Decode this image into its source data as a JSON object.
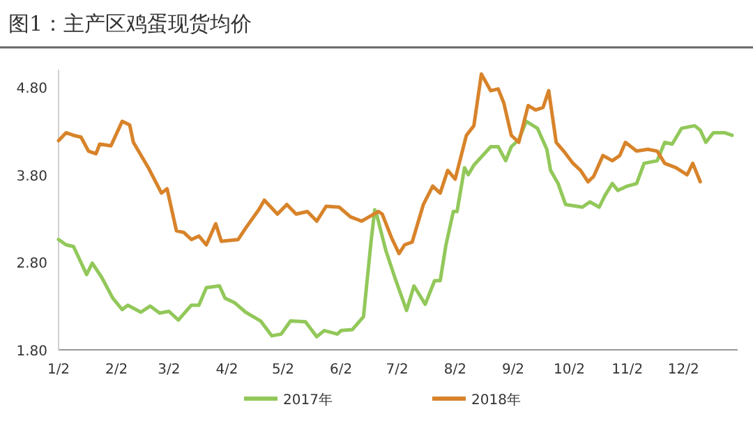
{
  "chart_data": {
    "type": "line",
    "title": "图1：主产区鸡蛋现货均价",
    "xlim": [
      "--01-02",
      "--12-31"
    ],
    "xticks": [
      {
        "value": "--01-02",
        "label": "1/2"
      },
      {
        "value": "--02-02",
        "label": "2/2"
      },
      {
        "value": "--03-02",
        "label": "3/2"
      },
      {
        "value": "--04-02",
        "label": "4/2"
      },
      {
        "value": "--05-02",
        "label": "5/2"
      },
      {
        "value": "--06-02",
        "label": "6/2"
      },
      {
        "value": "--07-02",
        "label": "7/2"
      },
      {
        "value": "--08-02",
        "label": "8/2"
      },
      {
        "value": "--09-02",
        "label": "9/2"
      },
      {
        "value": "--10-02",
        "label": "10/2"
      },
      {
        "value": "--11-02",
        "label": "11/2"
      },
      {
        "value": "--12-02",
        "label": "12/2"
      }
    ],
    "ylim": [
      1.8,
      5.0
    ],
    "yticks": [
      {
        "value": 1.8,
        "label": "1.80"
      },
      {
        "value": 2.8,
        "label": "2.80"
      },
      {
        "value": 3.8,
        "label": "3.80"
      },
      {
        "value": 4.8,
        "label": "4.80"
      }
    ],
    "grid": false,
    "legend": "bottom",
    "marker": "none",
    "line_style": "solid",
    "series": [
      {
        "name": "2017年",
        "color": "#92c85a",
        "x": [
          "--01-02",
          "--01-06",
          "--01-10",
          "--01-17",
          "--01-20",
          "--01-25",
          "--01-31",
          "--02-05",
          "--02-08",
          "--02-15",
          "--02-20",
          "--02-25",
          "--03-02",
          "--03-07",
          "--03-14",
          "--03-18",
          "--03-22",
          "--03-29",
          "--04-01",
          "--04-06",
          "--04-12",
          "--04-20",
          "--04-26",
          "--05-01",
          "--05-06",
          "--05-14",
          "--05-20",
          "--05-24",
          "--05-31",
          "--06-02",
          "--06-08",
          "--06-12",
          "--06-14",
          "--06-18",
          "--06-20",
          "--06-21",
          "--06-26",
          "--07-01",
          "--07-07",
          "--07-11",
          "--07-17",
          "--07-22",
          "--07-25",
          "--07-28",
          "--08-01",
          "--08-03",
          "--08-07",
          "--08-09",
          "--08-12",
          "--08-21",
          "--08-25",
          "--08-29",
          "--09-01",
          "--09-05",
          "--09-09",
          "--09-15",
          "--09-20",
          "--09-22",
          "--09-26",
          "--09-30",
          "--10-09",
          "--10-13",
          "--10-18",
          "--10-21",
          "--10-25",
          "--10-28",
          "--11-02",
          "--11-07",
          "--11-11",
          "--11-18",
          "--11-22",
          "--11-26",
          "--12-01",
          "--12-08",
          "--12-11",
          "--12-14",
          "--12-18",
          "--12-24",
          "--12-28"
        ],
        "values": [
          3.06,
          3.0,
          2.98,
          2.66,
          2.79,
          2.63,
          2.39,
          2.26,
          2.31,
          2.23,
          2.3,
          2.22,
          2.24,
          2.14,
          2.31,
          2.31,
          2.51,
          2.53,
          2.39,
          2.34,
          2.23,
          2.13,
          1.96,
          1.98,
          2.13,
          2.12,
          1.95,
          2.02,
          1.98,
          2.02,
          2.03,
          2.13,
          2.18,
          3.03,
          3.4,
          3.35,
          2.93,
          2.61,
          2.25,
          2.53,
          2.32,
          2.59,
          2.59,
          2.99,
          3.38,
          3.38,
          3.88,
          3.8,
          3.91,
          4.12,
          4.12,
          3.96,
          4.12,
          4.2,
          4.41,
          4.33,
          4.09,
          3.85,
          3.7,
          3.46,
          3.43,
          3.49,
          3.43,
          3.56,
          3.7,
          3.62,
          3.67,
          3.7,
          3.93,
          3.96,
          4.17,
          4.15,
          4.33,
          4.36,
          4.31,
          4.17,
          4.28,
          4.28,
          4.25
        ]
      },
      {
        "name": "2018年",
        "color": "#d8832a",
        "x": [
          "--01-02",
          "--01-06",
          "--01-10",
          "--01-14",
          "--01-18",
          "--01-22",
          "--01-24",
          "--01-30",
          "--02-05",
          "--02-09",
          "--02-11",
          "--02-19",
          "--02-26",
          "--03-01",
          "--03-06",
          "--03-10",
          "--03-14",
          "--03-18",
          "--03-22",
          "--03-27",
          "--03-30",
          "--04-08",
          "--04-12",
          "--04-19",
          "--04-22",
          "--04-29",
          "--05-04",
          "--05-09",
          "--05-15",
          "--05-20",
          "--05-25",
          "--06-01",
          "--06-07",
          "--06-13",
          "--06-17",
          "--06-22",
          "--06-24",
          "--06-29",
          "--07-03",
          "--07-06",
          "--07-10",
          "--07-16",
          "--07-21",
          "--07-25",
          "--07-29",
          "--08-02",
          "--08-08",
          "--08-12",
          "--08-16",
          "--08-21",
          "--08-25",
          "--08-28",
          "--09-01",
          "--09-05",
          "--09-10",
          "--09-14",
          "--09-18",
          "--09-21",
          "--09-25",
          "--09-29",
          "--10-04",
          "--10-08",
          "--10-12",
          "--10-15",
          "--10-20",
          "--10-25",
          "--10-29",
          "--11-01",
          "--11-07",
          "--11-13",
          "--11-18",
          "--11-22",
          "--11-28",
          "--12-04",
          "--12-07",
          "--12-11"
        ],
        "values": [
          4.19,
          4.28,
          4.25,
          4.23,
          4.07,
          4.04,
          4.15,
          4.13,
          4.41,
          4.37,
          4.17,
          3.88,
          3.59,
          3.64,
          3.16,
          3.14,
          3.06,
          3.1,
          3.0,
          3.24,
          3.04,
          3.06,
          3.19,
          3.4,
          3.51,
          3.35,
          3.46,
          3.35,
          3.38,
          3.27,
          3.44,
          3.43,
          3.32,
          3.27,
          3.32,
          3.38,
          3.35,
          3.08,
          2.9,
          3.0,
          3.03,
          3.46,
          3.67,
          3.59,
          3.85,
          3.75,
          4.25,
          4.36,
          4.95,
          4.76,
          4.78,
          4.62,
          4.25,
          4.17,
          4.59,
          4.54,
          4.57,
          4.76,
          4.17,
          4.07,
          3.93,
          3.85,
          3.72,
          3.78,
          4.02,
          3.96,
          4.02,
          4.17,
          4.07,
          4.09,
          4.07,
          3.93,
          3.88,
          3.8,
          3.93,
          3.72
        ]
      }
    ]
  }
}
